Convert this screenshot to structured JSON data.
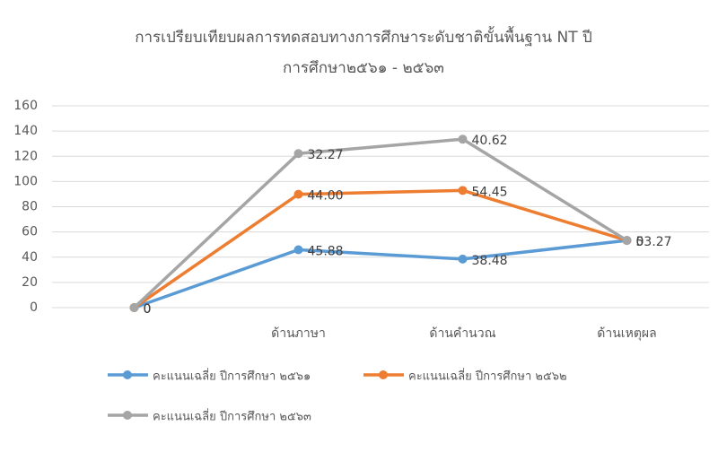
{
  "chart_data": {
    "type": "line",
    "stacked": true,
    "title": [
      "การเปรียบเทียบผลการทดสอบทางการศึกษาระดับชาติขั้นพื้นฐาน NT ปี",
      "การศึกษา๒๕๖๑ - ๒๕๖๓"
    ],
    "categories": [
      null,
      "ด้านภาษา",
      "ด้านคำนวณ",
      "ด้านเหตุผล"
    ],
    "series": [
      {
        "name": "คะแนนเฉลี่ย ปีการศึกษา ๒๕๖๑",
        "color": "#5b9bd5",
        "values": [
          0,
          45.88,
          38.48,
          53.27
        ]
      },
      {
        "name": "คะแนนเฉลี่ย ปีการศึกษา ๒๕๖๒",
        "color": "#ed7d31",
        "values": [
          0,
          44,
          54.45,
          0
        ],
        "value_labels": [
          "0",
          "44.00",
          "54.45",
          "0"
        ]
      },
      {
        "name": "คะแนนเฉลี่ย ปีการศึกษา ๒๕๖๓",
        "color": "#a5a5a5",
        "values": [
          0,
          32.27,
          40.62,
          0
        ]
      }
    ],
    "ylim": [
      0,
      160
    ],
    "yticks": [
      0,
      20,
      40,
      60,
      80,
      100,
      120,
      140,
      160
    ],
    "grid": true,
    "legend": "bottom"
  }
}
